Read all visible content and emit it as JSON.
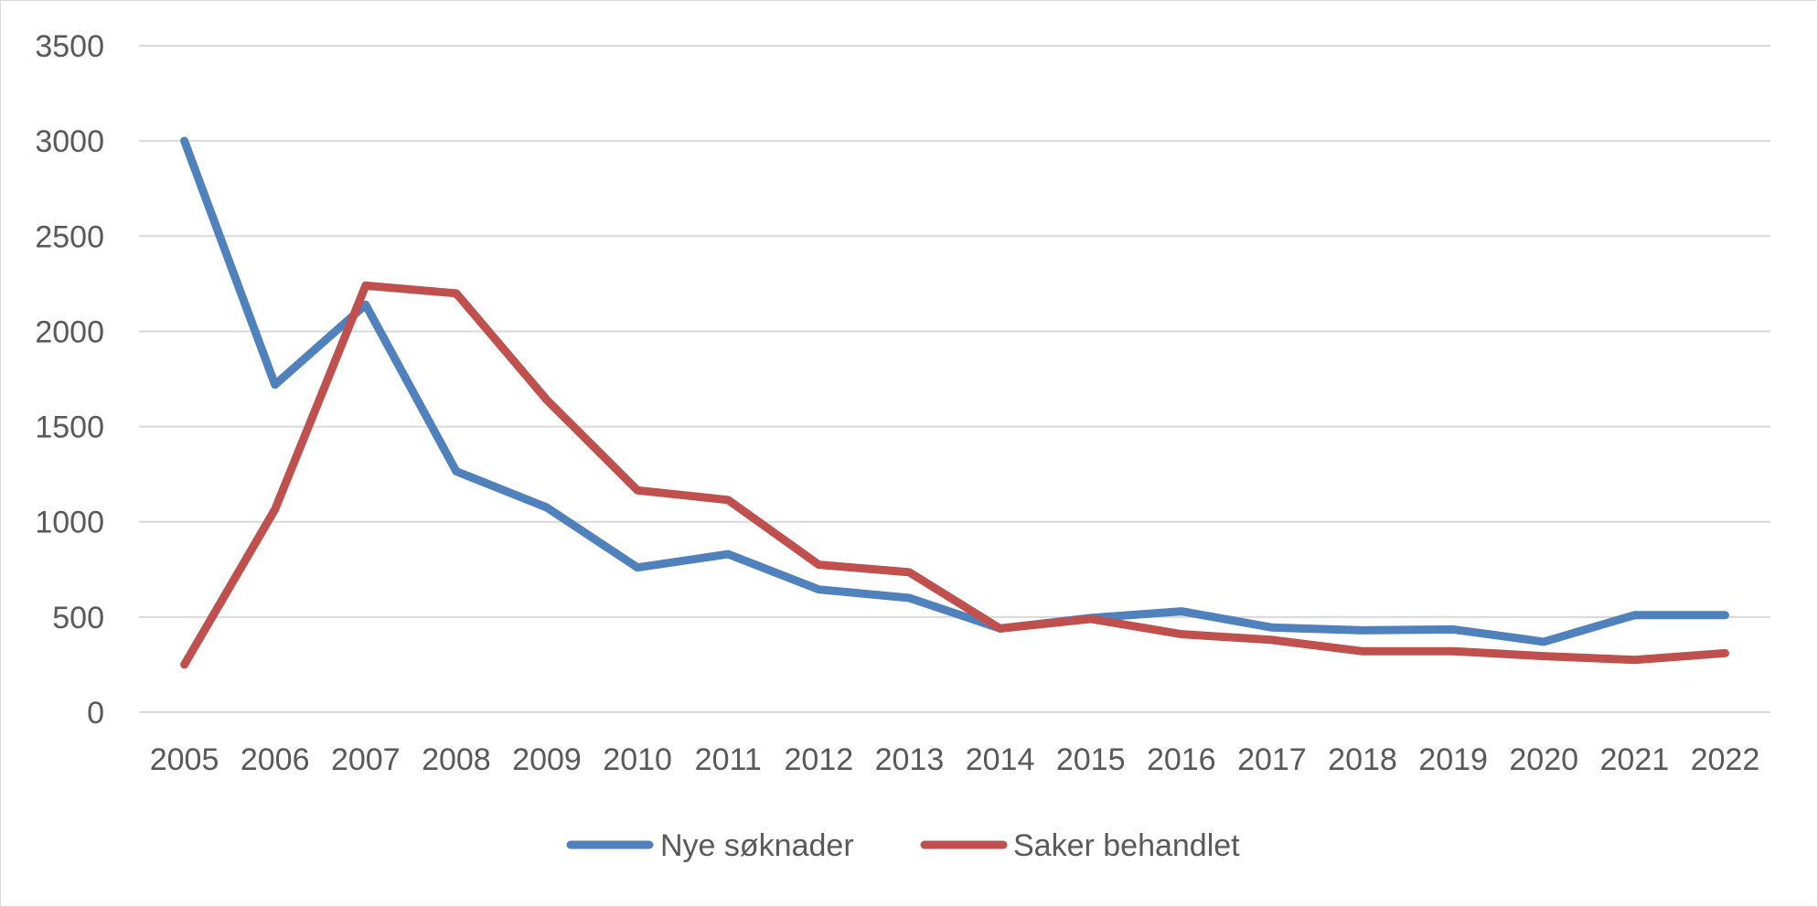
{
  "chart_data": {
    "type": "line",
    "title": "",
    "xlabel": "",
    "ylabel": "",
    "categories": [
      "2005",
      "2006",
      "2007",
      "2008",
      "2009",
      "2010",
      "2011",
      "2012",
      "2013",
      "2014",
      "2015",
      "2016",
      "2017",
      "2018",
      "2019",
      "2020",
      "2021",
      "2022"
    ],
    "ylim": [
      0,
      3500
    ],
    "yticks": [
      0,
      500,
      1000,
      1500,
      2000,
      2500,
      3000,
      3500
    ],
    "grid": true,
    "legend_position": "bottom",
    "series": [
      {
        "name": "Nye søknader",
        "color": "#4f81bd",
        "values": [
          3000,
          1720,
          2140,
          1265,
          1075,
          760,
          830,
          645,
          600,
          440,
          495,
          530,
          445,
          430,
          435,
          370,
          510,
          510
        ]
      },
      {
        "name": "Saker behandlet",
        "color": "#c0504d",
        "values": [
          250,
          1065,
          2240,
          2200,
          1640,
          1165,
          1115,
          775,
          735,
          440,
          490,
          410,
          380,
          320,
          320,
          295,
          275,
          310
        ]
      }
    ]
  }
}
